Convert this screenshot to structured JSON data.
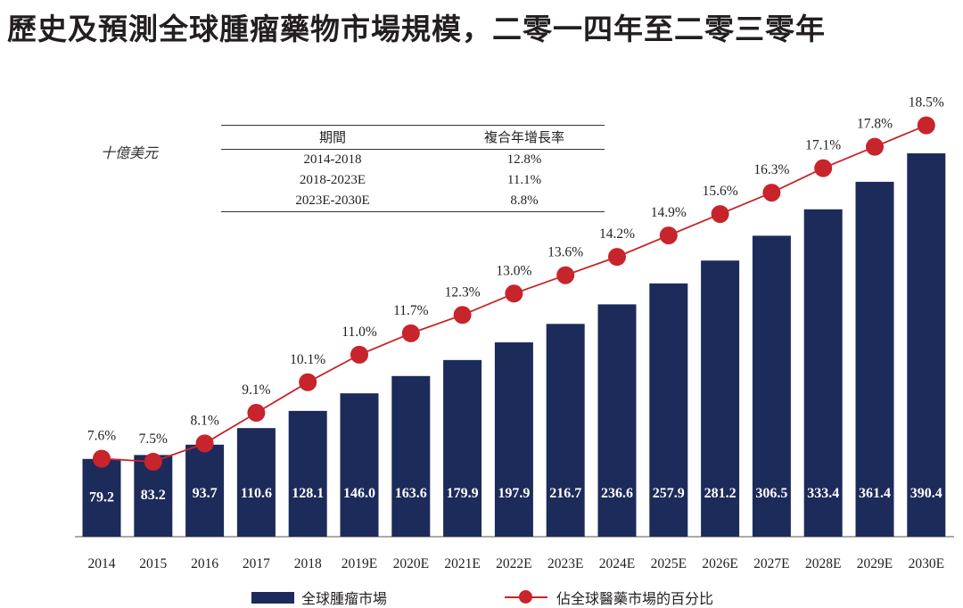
{
  "title": "歷史及預測全球腫瘤藥物市場規模，二零一四年至二零三零年",
  "unit_label": "十億美元",
  "cagr_table": {
    "headers": [
      "期間",
      "複合年增長率"
    ],
    "rows": [
      [
        "2014-2018",
        "12.8%"
      ],
      [
        "2018-2023E",
        "11.1%"
      ],
      [
        "2023E-2030E",
        "8.8%"
      ]
    ]
  },
  "colors": {
    "bar": "#1d2b5a",
    "line": "#c8242b"
  },
  "chart_data": {
    "type": "bar",
    "categories": [
      "2014",
      "2015",
      "2016",
      "2017",
      "2018",
      "2019E",
      "2020E",
      "2021E",
      "2022E",
      "2023E",
      "2024E",
      "2025E",
      "2026E",
      "2027E",
      "2028E",
      "2029E",
      "2030E"
    ],
    "series": [
      {
        "name": "全球腫瘤市場",
        "type": "bar",
        "values": [
          79.2,
          83.2,
          93.7,
          110.6,
          128.1,
          146.0,
          163.6,
          179.9,
          197.9,
          216.7,
          236.6,
          257.9,
          281.2,
          306.5,
          333.4,
          361.4,
          390.4
        ],
        "labels": [
          "79.2",
          "83.2",
          "93.7",
          "110.6",
          "128.1",
          "146.0",
          "163.6",
          "179.9",
          "197.9",
          "216.7",
          "236.6",
          "257.9",
          "281.2",
          "306.5",
          "333.4",
          "361.4",
          "390.4"
        ]
      },
      {
        "name": "佔全球醫藥市場的百分比",
        "type": "line",
        "values": [
          7.6,
          7.5,
          8.1,
          9.1,
          10.1,
          11.0,
          11.7,
          12.3,
          13.0,
          13.6,
          14.2,
          14.9,
          15.6,
          16.3,
          17.1,
          17.8,
          18.5
        ],
        "labels": [
          "7.6%",
          "7.5%",
          "8.1%",
          "9.1%",
          "10.1%",
          "11.0%",
          "11.7%",
          "12.3%",
          "13.0%",
          "13.6%",
          "14.2%",
          "14.9%",
          "15.6%",
          "16.3%",
          "17.1%",
          "17.8%",
          "18.5%"
        ]
      }
    ],
    "legend": [
      "全球腫瘤市場",
      "佔全球醫藥市場的百分比"
    ],
    "legend_position": "bottom"
  }
}
